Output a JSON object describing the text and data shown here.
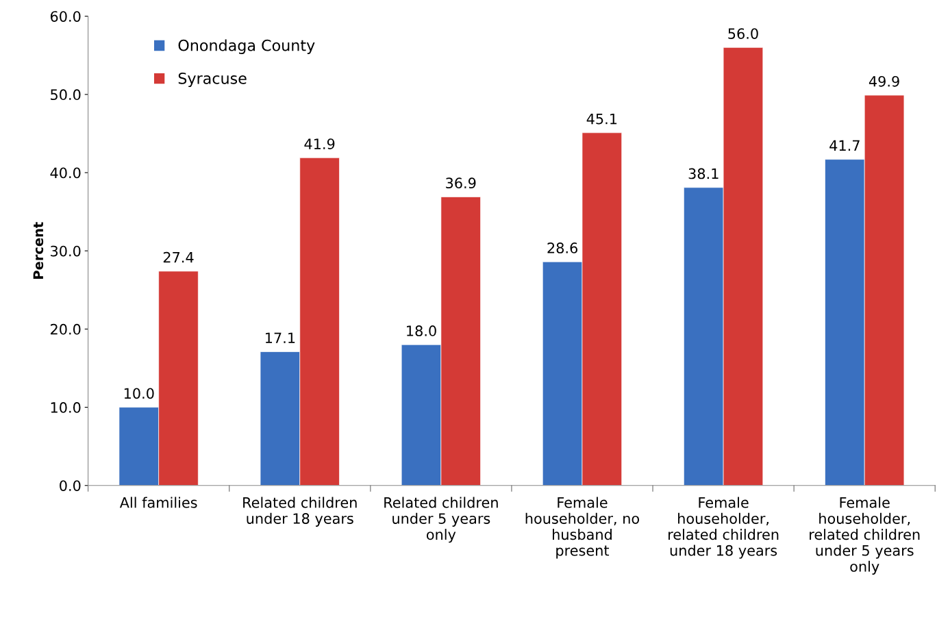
{
  "chart_data": {
    "type": "bar",
    "categories": [
      "All families",
      "Related children\nunder 18 years",
      "Related children\nunder 5 years\nonly",
      "Female\nhouseholder, no\nhusband\npresent",
      "Female\nhouseholder,\nrelated children\nunder 18 years",
      "Female\nhouseholder,\nrelated children\nunder 5 years\nonly"
    ],
    "series": [
      {
        "name": "Onondaga County",
        "color": "#3a70c0",
        "values": [
          10.0,
          17.1,
          18.0,
          28.6,
          38.1,
          41.7
        ],
        "value_labels": [
          "10.0",
          "17.1",
          "18.0",
          "28.6",
          "38.1",
          "41.7"
        ]
      },
      {
        "name": "Syracuse",
        "color": "#d43a36",
        "values": [
          27.4,
          41.9,
          36.9,
          45.1,
          56.0,
          49.9
        ],
        "value_labels": [
          "27.4",
          "41.9",
          "36.9",
          "45.1",
          "56.0",
          "49.9"
        ]
      }
    ],
    "ylabel": "Percent",
    "ylim": [
      0,
      60
    ],
    "yticks": [
      {
        "value": 0,
        "label": "0.0"
      },
      {
        "value": 10,
        "label": "10.0"
      },
      {
        "value": 20,
        "label": "20.0"
      },
      {
        "value": 30,
        "label": "30.0"
      },
      {
        "value": 40,
        "label": "40.0"
      },
      {
        "value": 50,
        "label": "50.0"
      },
      {
        "value": 60,
        "label": "60.0"
      }
    ],
    "grid": false,
    "legend": "top left"
  }
}
